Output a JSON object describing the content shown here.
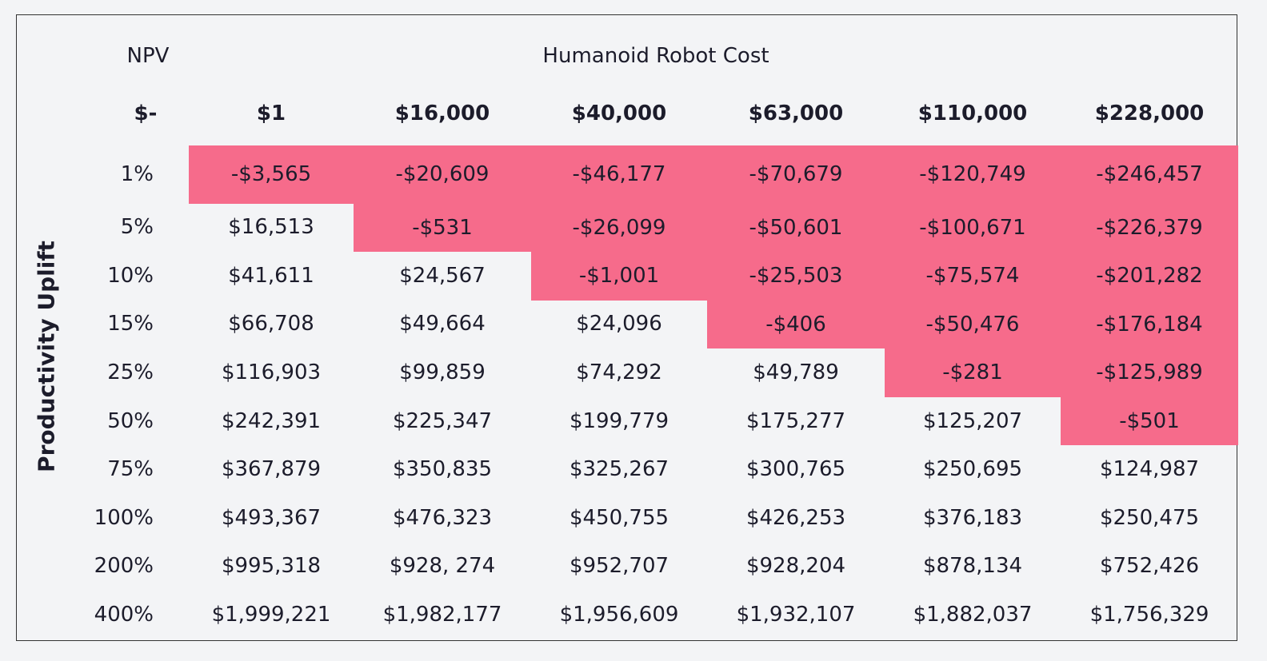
{
  "table": {
    "corner": "NPV",
    "column_title": "Humanoid Robot Cost",
    "row_title": "Productivity Uplift",
    "header": [
      "$-",
      "$1",
      "$16,000",
      "$40,000",
      "$63,000",
      "$110,000",
      "$228,000"
    ],
    "rows": [
      {
        "label": "1%",
        "cells": [
          "-$3,565",
          "-$20,609",
          "-$46,177",
          "-$70,679",
          "-$120,749",
          "-$246,457"
        ]
      },
      {
        "label": "5%",
        "cells": [
          "$16,513",
          "-$531",
          "-$26,099",
          "-$50,601",
          "-$100,671",
          "-$226,379"
        ]
      },
      {
        "label": "10%",
        "cells": [
          "$41,611",
          "$24,567",
          "-$1,001",
          "-$25,503",
          "-$75,574",
          "-$201,282"
        ]
      },
      {
        "label": "15%",
        "cells": [
          "$66,708",
          "$49,664",
          "$24,096",
          "-$406",
          "-$50,476",
          "-$176,184"
        ]
      },
      {
        "label": "25%",
        "cells": [
          "$116,903",
          "$99,859",
          "$74,292",
          "$49,789",
          "-$281",
          "-$125,989"
        ]
      },
      {
        "label": "50%",
        "cells": [
          "$242,391",
          "$225,347",
          "$199,779",
          "$175,277",
          "$125,207",
          "-$501"
        ]
      },
      {
        "label": "75%",
        "cells": [
          "$367,879",
          "$350,835",
          "$325,267",
          "$300,765",
          "$250,695",
          "$124,987"
        ]
      },
      {
        "label": "100%",
        "cells": [
          "$493,367",
          "$476,323",
          "$450,755",
          "$426,253",
          "$376,183",
          "$250,475"
        ]
      },
      {
        "label": "200%",
        "cells": [
          "$995,318",
          "$928, 274",
          "$952,707",
          "$928,204",
          "$878,134",
          "$752,426"
        ]
      },
      {
        "label": "400%",
        "cells": [
          "$1,999,221",
          "$1,982,177",
          "$1,956,609",
          "$1,932,107",
          "$1,882,037",
          "$1,756,329"
        ]
      }
    ]
  }
}
